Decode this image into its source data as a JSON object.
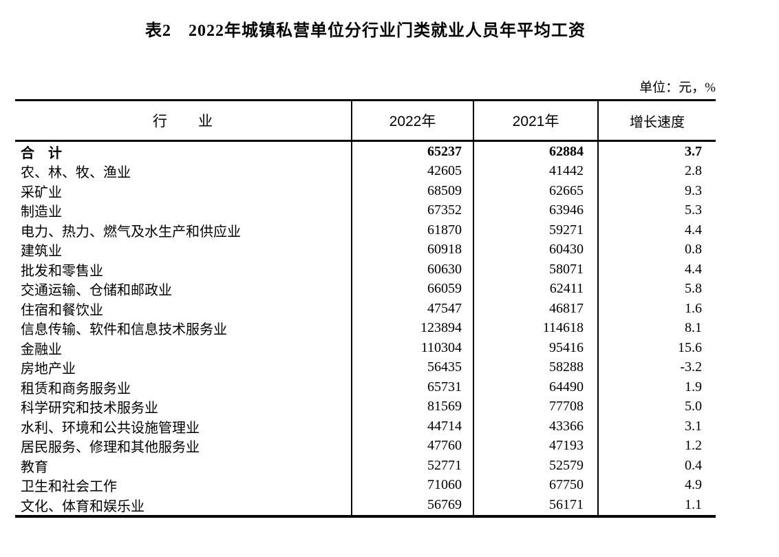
{
  "page": {
    "title": "表2　2022年城镇私营单位分行业门类就业人员年平均工资",
    "unit_note": "单位：元，%",
    "text_color": "#000000",
    "background_color": "#ffffff"
  },
  "table": {
    "headers": {
      "industry": "行　　业",
      "y2022": "2022年",
      "y2021": "2021年",
      "growth": "增长速度"
    },
    "rows": [
      {
        "industry": "合　计",
        "y2022": "65237",
        "y2021": "62884",
        "growth": "3.7"
      },
      {
        "industry": "农、林、牧、渔业",
        "y2022": "42605",
        "y2021": "41442",
        "growth": "2.8"
      },
      {
        "industry": "采矿业",
        "y2022": "68509",
        "y2021": "62665",
        "growth": "9.3"
      },
      {
        "industry": "制造业",
        "y2022": "67352",
        "y2021": "63946",
        "growth": "5.3"
      },
      {
        "industry": "电力、热力、燃气及水生产和供应业",
        "y2022": "61870",
        "y2021": "59271",
        "growth": "4.4"
      },
      {
        "industry": "建筑业",
        "y2022": "60918",
        "y2021": "60430",
        "growth": "0.8"
      },
      {
        "industry": "批发和零售业",
        "y2022": "60630",
        "y2021": "58071",
        "growth": "4.4"
      },
      {
        "industry": "交通运输、仓储和邮政业",
        "y2022": "66059",
        "y2021": "62411",
        "growth": "5.8"
      },
      {
        "industry": "住宿和餐饮业",
        "y2022": "47547",
        "y2021": "46817",
        "growth": "1.6"
      },
      {
        "industry": "信息传输、软件和信息技术服务业",
        "y2022": "123894",
        "y2021": "114618",
        "growth": "8.1"
      },
      {
        "industry": "金融业",
        "y2022": "110304",
        "y2021": "95416",
        "growth": "15.6"
      },
      {
        "industry": "房地产业",
        "y2022": "56435",
        "y2021": "58288",
        "growth": "-3.2"
      },
      {
        "industry": "租赁和商务服务业",
        "y2022": "65731",
        "y2021": "64490",
        "growth": "1.9"
      },
      {
        "industry": "科学研究和技术服务业",
        "y2022": "81569",
        "y2021": "77708",
        "growth": "5.0"
      },
      {
        "industry": "水利、环境和公共设施管理业",
        "y2022": "44714",
        "y2021": "43366",
        "growth": "3.1"
      },
      {
        "industry": "居民服务、修理和其他服务业",
        "y2022": "47760",
        "y2021": "47193",
        "growth": "1.2"
      },
      {
        "industry": "教育",
        "y2022": "52771",
        "y2021": "52579",
        "growth": "0.4"
      },
      {
        "industry": "卫生和社会工作",
        "y2022": "71060",
        "y2021": "67750",
        "growth": "4.9"
      },
      {
        "industry": "文化、体育和娱乐业",
        "y2022": "56769",
        "y2021": "56171",
        "growth": "1.1"
      }
    ]
  }
}
